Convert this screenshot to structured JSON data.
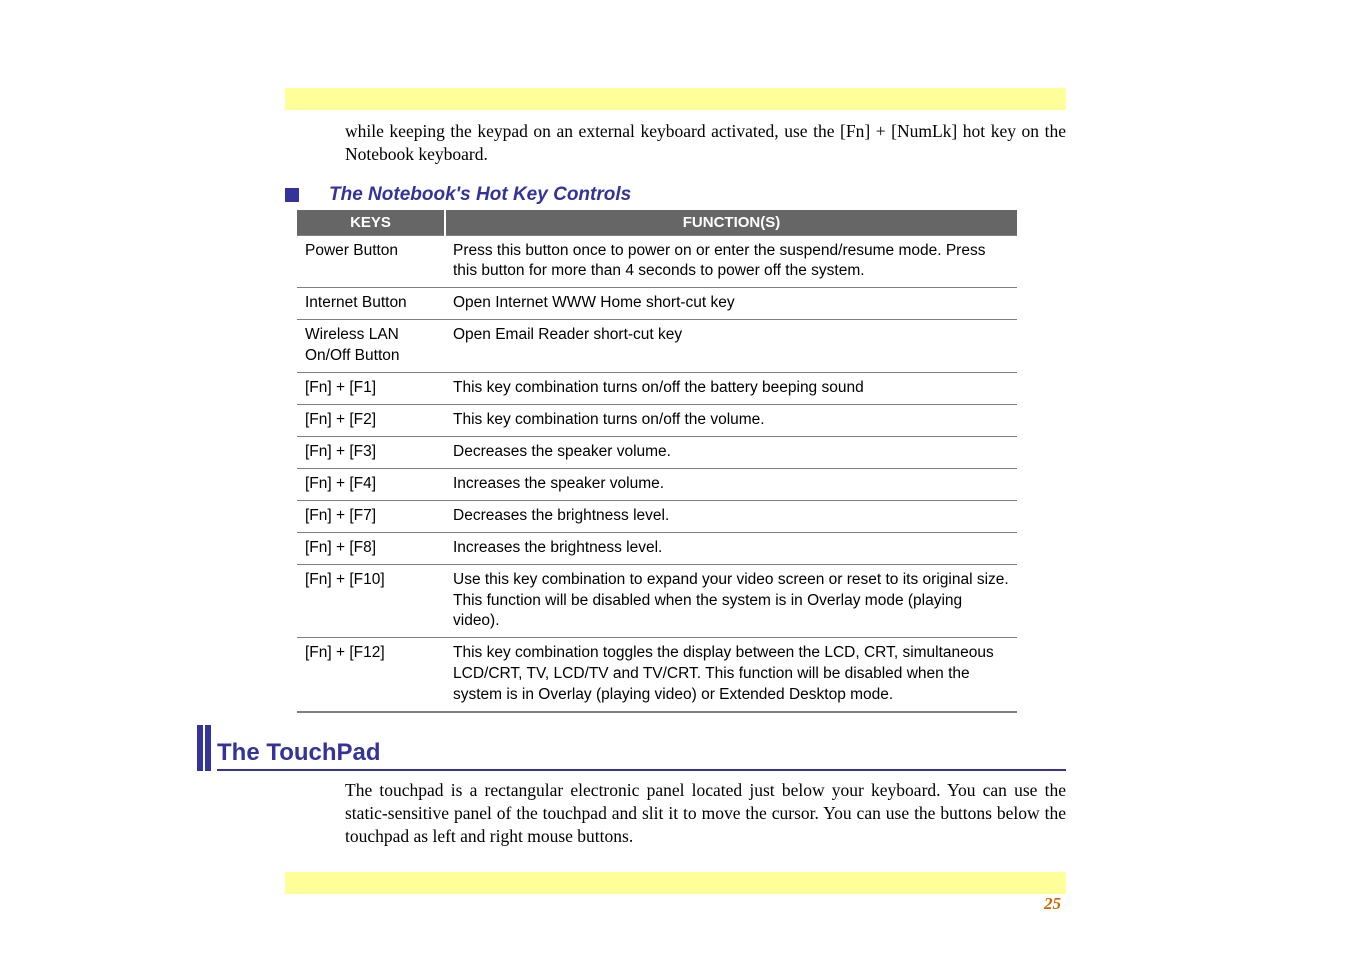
{
  "intro_paragraph": "while keeping the keypad on an external keyboard activated, use the [Fn] + [NumLk] hot key on the Notebook keyboard.",
  "section_title": "The Notebook's Hot Key Controls",
  "table": {
    "header_keys": "KEYS",
    "header_func": "FUNCTION(S)",
    "rows": [
      {
        "key": "Power Button",
        "func": "Press this button once to power on or enter the suspend/resume mode.  Press this button for more than 4 seconds to power off the system."
      },
      {
        "key": "Internet Button",
        "func": "Open Internet WWW Home short-cut key"
      },
      {
        "key": "Wireless LAN On/Off  Button",
        "func": "Open Email Reader short-cut key"
      },
      {
        "key": "[Fn] + [F1]",
        "func": "This key combination turns on/off the battery beeping sound"
      },
      {
        "key": "[Fn] + [F2]",
        "func": "This key combination turns on/off the volume."
      },
      {
        "key": "[Fn] + [F3]",
        "func": "Decreases the speaker volume."
      },
      {
        "key": "[Fn] + [F4]",
        "func": "Increases the speaker volume."
      },
      {
        "key": "[Fn] + [F7]",
        "func": "Decreases the brightness level."
      },
      {
        "key": "[Fn] + [F8]",
        "func": "Increases the brightness level."
      },
      {
        "key": "[Fn] + [F10]",
        "func": "Use this key combination to expand your video screen or reset to its original size.  This function will be disabled when the system is in Overlay mode (playing video)."
      },
      {
        "key": "[Fn] + [F12]",
        "func": "This key combination toggles the display between the LCD, CRT, simultaneous LCD/CRT, TV, LCD/TV and TV/CRT.  This function will be disabled when the system is in Overlay (playing video) or Extended Desktop mode."
      }
    ]
  },
  "touchpad_heading": "The TouchPad",
  "touchpad_para": "The touchpad is a rectangular electronic panel located just below your keyboard.  You can use the static-sensitive panel of the touchpad and slit it to move the cursor.  You can use the buttons below the touchpad as left and right mouse buttons.",
  "page_number": "25"
}
